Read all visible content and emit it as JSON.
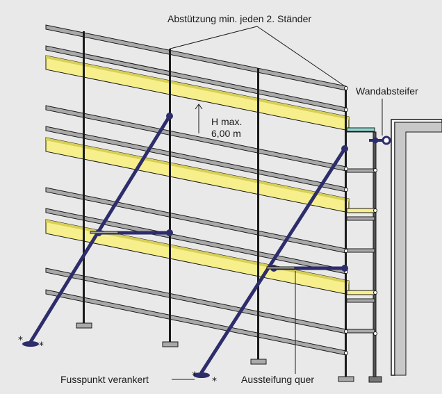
{
  "diagram": {
    "labels": {
      "support": "Abstützung min. jeden 2. Ständer",
      "wall_tie": "Wandabsteifer",
      "height_line1": "H max.",
      "height_line2": "6,00 m",
      "foot_anchor": "Fusspunkt verankert",
      "cross_bracing": "Aussteifung quer"
    },
    "colors": {
      "background": "#e9e9e9",
      "rail_fill": "#a9a9a9",
      "toe_board": "#f6ef8c",
      "brace": "#2e2d6b",
      "outline": "#1a1a1a"
    }
  }
}
